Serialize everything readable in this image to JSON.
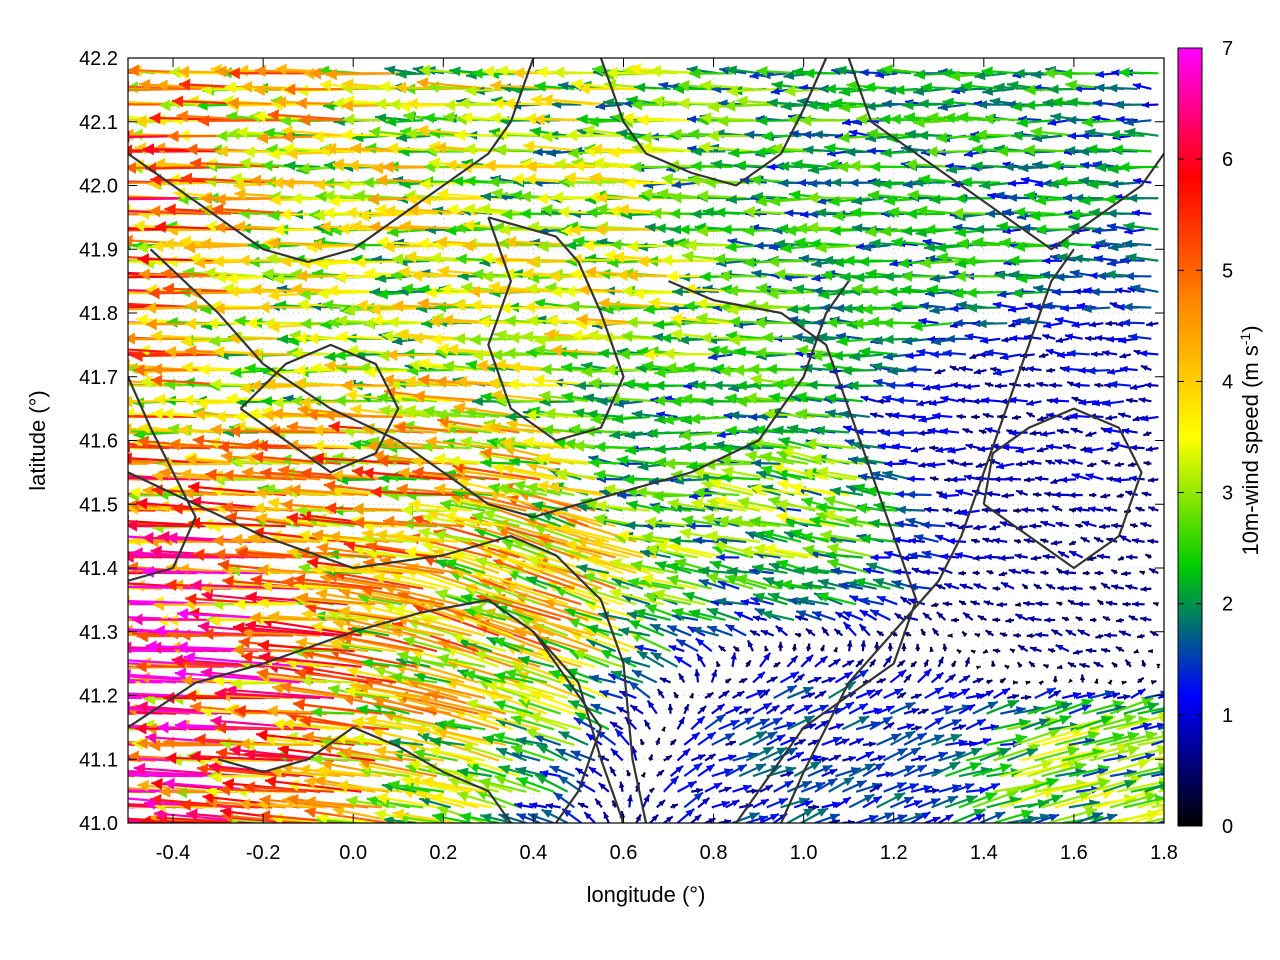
{
  "chart_data": {
    "type": "vector-field",
    "xlabel": "longitude (°)",
    "ylabel": "latitude (°)",
    "colorbar_label": "10m-wind speed (m s",
    "colorbar_label_sup": "-1",
    "colorbar_label_close": ")",
    "xlim": [
      -0.5,
      1.8
    ],
    "ylim": [
      41.0,
      42.2
    ],
    "x_ticks": [
      "-0.4",
      "-0.2",
      "0.0",
      "0.2",
      "0.4",
      "0.6",
      "0.8",
      "1.0",
      "1.2",
      "1.4",
      "1.6",
      "1.8"
    ],
    "x_tick_values": [
      -0.4,
      -0.2,
      0.0,
      0.2,
      0.4,
      0.6,
      0.8,
      1.0,
      1.2,
      1.4,
      1.6,
      1.8
    ],
    "y_ticks": [
      "41.0",
      "41.1",
      "41.2",
      "41.3",
      "41.4",
      "41.5",
      "41.6",
      "41.7",
      "41.8",
      "41.9",
      "42.0",
      "42.1",
      "42.2"
    ],
    "y_tick_values": [
      41.0,
      41.1,
      41.2,
      41.3,
      41.4,
      41.5,
      41.6,
      41.7,
      41.8,
      41.9,
      42.0,
      42.1,
      42.2
    ],
    "colorbar_range": [
      0,
      7
    ],
    "colorbar_ticks": [
      "0",
      "1",
      "2",
      "3",
      "4",
      "5",
      "6",
      "7"
    ],
    "colorbar_tick_values": [
      0,
      1,
      2,
      3,
      4,
      5,
      6,
      7
    ],
    "colormap": [
      "#000000",
      "#0000ff",
      "#00cc00",
      "#ffff00",
      "#ff8c00",
      "#ff0000",
      "#ff00ff"
    ],
    "grid": true,
    "wind_samples": [
      {
        "lon": -0.4,
        "lat": 41.9,
        "u": -4.5,
        "v": 0.1
      },
      {
        "lon": -0.4,
        "lat": 41.3,
        "u": -5.5,
        "v": 0.2
      },
      {
        "lon": 0.0,
        "lat": 41.8,
        "u": -3.0,
        "v": 0.0
      },
      {
        "lon": 0.2,
        "lat": 41.5,
        "u": -4.0,
        "v": 0.3
      },
      {
        "lon": 0.4,
        "lat": 41.4,
        "u": -3.5,
        "v": 1.2
      },
      {
        "lon": 0.6,
        "lat": 41.8,
        "u": -3.0,
        "v": 0.1
      },
      {
        "lon": 0.8,
        "lat": 41.6,
        "u": -2.0,
        "v": 0.0
      },
      {
        "lon": 1.0,
        "lat": 41.5,
        "u": -2.5,
        "v": 0.5
      },
      {
        "lon": 1.2,
        "lat": 41.9,
        "u": -2.0,
        "v": 0.0
      },
      {
        "lon": 1.4,
        "lat": 41.6,
        "u": -0.8,
        "v": 0.0
      },
      {
        "lon": 1.6,
        "lat": 41.3,
        "u": -0.6,
        "v": 0.1
      },
      {
        "lon": 1.6,
        "lat": 41.1,
        "u": 2.5,
        "v": 0.6
      },
      {
        "lon": 1.0,
        "lat": 41.1,
        "u": 1.2,
        "v": 0.5
      }
    ],
    "contours": [
      [
        [
          -0.5,
          41.15
        ],
        [
          -0.35,
          41.22
        ],
        [
          -0.2,
          41.25
        ],
        [
          0.0,
          41.3
        ],
        [
          0.15,
          41.33
        ],
        [
          0.3,
          41.35
        ],
        [
          0.4,
          41.3
        ],
        [
          0.5,
          41.22
        ],
        [
          0.55,
          41.1
        ],
        [
          0.6,
          41.0
        ]
      ],
      [
        [
          -0.5,
          41.55
        ],
        [
          -0.35,
          41.5
        ],
        [
          -0.2,
          41.45
        ],
        [
          0.0,
          41.4
        ],
        [
          0.2,
          41.42
        ],
        [
          0.35,
          41.45
        ],
        [
          0.45,
          41.42
        ],
        [
          0.55,
          41.35
        ],
        [
          0.6,
          41.25
        ],
        [
          0.62,
          41.1
        ],
        [
          0.65,
          41.0
        ]
      ],
      [
        [
          -0.45,
          41.9
        ],
        [
          -0.3,
          41.8
        ],
        [
          -0.2,
          41.72
        ],
        [
          -0.05,
          41.65
        ],
        [
          0.1,
          41.6
        ],
        [
          0.2,
          41.55
        ],
        [
          0.3,
          41.5
        ],
        [
          0.4,
          41.48
        ],
        [
          0.5,
          41.5
        ],
        [
          0.6,
          41.52
        ],
        [
          0.75,
          41.55
        ],
        [
          0.9,
          41.6
        ],
        [
          1.0,
          41.7
        ],
        [
          1.05,
          41.8
        ],
        [
          1.1,
          41.85
        ]
      ],
      [
        [
          0.3,
          41.95
        ],
        [
          0.35,
          41.85
        ],
        [
          0.3,
          41.75
        ],
        [
          0.35,
          41.65
        ],
        [
          0.45,
          41.6
        ],
        [
          0.55,
          41.62
        ],
        [
          0.6,
          41.7
        ],
        [
          0.55,
          41.8
        ],
        [
          0.5,
          41.88
        ],
        [
          0.45,
          41.92
        ],
        [
          0.3,
          41.95
        ]
      ],
      [
        [
          0.55,
          42.2
        ],
        [
          0.6,
          42.1
        ],
        [
          0.65,
          42.05
        ],
        [
          0.75,
          42.02
        ],
        [
          0.85,
          42.0
        ],
        [
          0.95,
          42.05
        ],
        [
          1.0,
          42.12
        ],
        [
          1.05,
          42.2
        ]
      ],
      [
        [
          0.7,
          41.85
        ],
        [
          0.8,
          41.82
        ],
        [
          0.95,
          41.8
        ],
        [
          1.05,
          41.75
        ],
        [
          1.1,
          41.65
        ],
        [
          1.15,
          41.55
        ],
        [
          1.2,
          41.45
        ],
        [
          1.25,
          41.35
        ],
        [
          1.2,
          41.25
        ],
        [
          1.1,
          41.2
        ],
        [
          1.0,
          41.15
        ],
        [
          0.9,
          41.05
        ],
        [
          0.85,
          41.0
        ]
      ],
      [
        [
          0.95,
          41.0
        ],
        [
          1.0,
          41.08
        ],
        [
          1.05,
          41.15
        ],
        [
          1.1,
          41.22
        ],
        [
          1.2,
          41.3
        ],
        [
          1.3,
          41.38
        ],
        [
          1.35,
          41.45
        ],
        [
          1.4,
          41.55
        ],
        [
          1.45,
          41.65
        ],
        [
          1.5,
          41.75
        ],
        [
          1.55,
          41.85
        ],
        [
          1.6,
          41.9
        ]
      ],
      [
        [
          -0.5,
          42.05
        ],
        [
          -0.4,
          42.0
        ],
        [
          -0.3,
          41.95
        ],
        [
          -0.2,
          41.9
        ],
        [
          -0.1,
          41.88
        ],
        [
          0.0,
          41.9
        ],
        [
          0.1,
          41.95
        ],
        [
          0.2,
          42.0
        ],
        [
          0.3,
          42.05
        ],
        [
          0.35,
          42.1
        ],
        [
          0.4,
          42.2
        ]
      ],
      [
        [
          1.1,
          42.2
        ],
        [
          1.15,
          42.1
        ],
        [
          1.25,
          42.05
        ],
        [
          1.35,
          42.0
        ],
        [
          1.45,
          41.95
        ],
        [
          1.55,
          41.9
        ],
        [
          1.65,
          41.95
        ],
        [
          1.75,
          42.0
        ],
        [
          1.8,
          42.05
        ]
      ],
      [
        [
          -0.25,
          41.65
        ],
        [
          -0.15,
          41.6
        ],
        [
          -0.05,
          41.55
        ],
        [
          0.05,
          41.58
        ],
        [
          0.1,
          41.65
        ],
        [
          0.05,
          41.72
        ],
        [
          -0.05,
          41.75
        ],
        [
          -0.15,
          41.72
        ],
        [
          -0.25,
          41.65
        ]
      ],
      [
        [
          0.4,
          41.3
        ],
        [
          0.45,
          41.25
        ],
        [
          0.5,
          41.2
        ],
        [
          0.55,
          41.15
        ],
        [
          0.5,
          41.05
        ],
        [
          0.45,
          41.0
        ]
      ],
      [
        [
          -0.3,
          41.1
        ],
        [
          -0.2,
          41.08
        ],
        [
          -0.1,
          41.1
        ],
        [
          0.0,
          41.15
        ],
        [
          0.1,
          41.12
        ],
        [
          0.2,
          41.08
        ],
        [
          0.3,
          41.05
        ],
        [
          0.35,
          41.0
        ]
      ],
      [
        [
          1.4,
          41.5
        ],
        [
          1.5,
          41.45
        ],
        [
          1.6,
          41.4
        ],
        [
          1.7,
          41.45
        ],
        [
          1.75,
          41.55
        ],
        [
          1.7,
          41.62
        ],
        [
          1.6,
          41.65
        ],
        [
          1.5,
          41.62
        ],
        [
          1.42,
          41.58
        ],
        [
          1.4,
          41.5
        ]
      ],
      [
        [
          -0.5,
          41.7
        ],
        [
          -0.45,
          41.62
        ],
        [
          -0.4,
          41.55
        ],
        [
          -0.35,
          41.48
        ],
        [
          -0.4,
          41.4
        ],
        [
          -0.5,
          41.38
        ]
      ]
    ]
  }
}
